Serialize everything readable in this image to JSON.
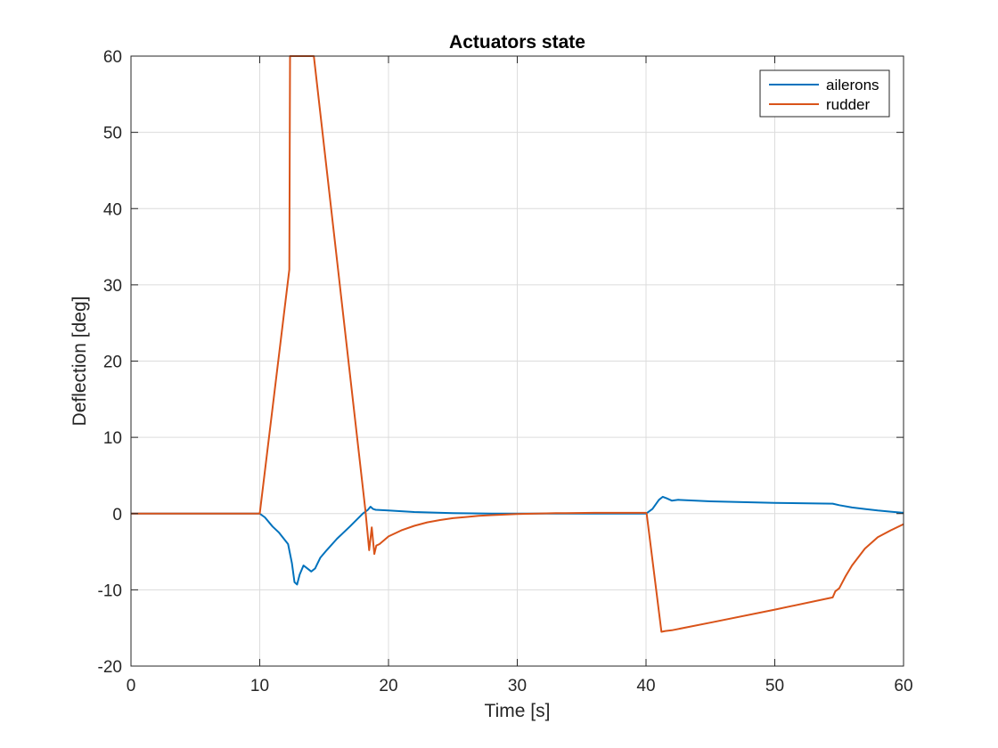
{
  "chart_data": {
    "type": "line",
    "title": "Actuators state",
    "xlabel": "Time [s]",
    "ylabel": "Deflection [deg]",
    "xlim": [
      0,
      60
    ],
    "ylim": [
      -20,
      60
    ],
    "xticks": [
      0,
      10,
      20,
      30,
      40,
      50,
      60
    ],
    "yticks": [
      -20,
      -10,
      0,
      10,
      20,
      30,
      40,
      50,
      60
    ],
    "xtick_labels": [
      "0",
      "10",
      "20",
      "30",
      "40",
      "50",
      "60"
    ],
    "ytick_labels": [
      "-20",
      "-10",
      "0",
      "10",
      "20",
      "30",
      "40",
      "50",
      "60"
    ],
    "grid": true,
    "legend_position": "top-right",
    "series": [
      {
        "name": "ailerons",
        "color": "#0072BD",
        "x": [
          0,
          10,
          10.4,
          11,
          11.5,
          12.2,
          12.5,
          12.7,
          12.9,
          13.1,
          13.4,
          13.7,
          14,
          14.3,
          14.7,
          15.2,
          16,
          17,
          18,
          18.4,
          18.6,
          18.8,
          19,
          20,
          22,
          25,
          28,
          30,
          35,
          40,
          40.5,
          41,
          41.3,
          41.6,
          42,
          42.5,
          45,
          50,
          54.5,
          55,
          56,
          57,
          58,
          59,
          60
        ],
        "y": [
          0,
          0,
          -0.5,
          -1.7,
          -2.5,
          -4,
          -6.5,
          -9,
          -9.3,
          -8,
          -6.8,
          -7.2,
          -7.6,
          -7.2,
          -5.8,
          -4.8,
          -3.3,
          -1.7,
          0,
          0.5,
          0.9,
          0.6,
          0.5,
          0.4,
          0.2,
          0.05,
          0,
          0,
          0,
          0,
          0.6,
          1.8,
          2.2,
          2,
          1.7,
          1.8,
          1.6,
          1.4,
          1.3,
          1.1,
          0.8,
          0.6,
          0.4,
          0.25,
          0.1
        ]
      },
      {
        "name": "rudder",
        "color": "#D95319",
        "x": [
          0,
          10,
          12.3,
          12.35,
          12.4,
          14.2,
          18.2,
          18.5,
          18.7,
          18.9,
          19.05,
          19.3,
          20,
          21,
          22,
          23,
          24,
          25,
          26,
          27,
          28,
          30,
          33,
          36,
          40,
          40.05,
          41.2,
          41.5,
          42,
          45,
          50,
          54.5,
          54.7,
          55,
          55.5,
          56,
          57,
          58,
          59,
          60
        ],
        "y": [
          0,
          0,
          32,
          60,
          60,
          60,
          0.5,
          -4.8,
          -1.8,
          -5.3,
          -4.2,
          -4,
          -3,
          -2.2,
          -1.6,
          -1.15,
          -0.85,
          -0.6,
          -0.45,
          -0.3,
          -0.2,
          -0.05,
          0.05,
          0.1,
          0.1,
          0,
          -15.5,
          -15.4,
          -15.3,
          -14.3,
          -12.6,
          -11,
          -10.2,
          -9.8,
          -8.2,
          -6.8,
          -4.6,
          -3.1,
          -2.2,
          -1.4
        ]
      }
    ]
  }
}
